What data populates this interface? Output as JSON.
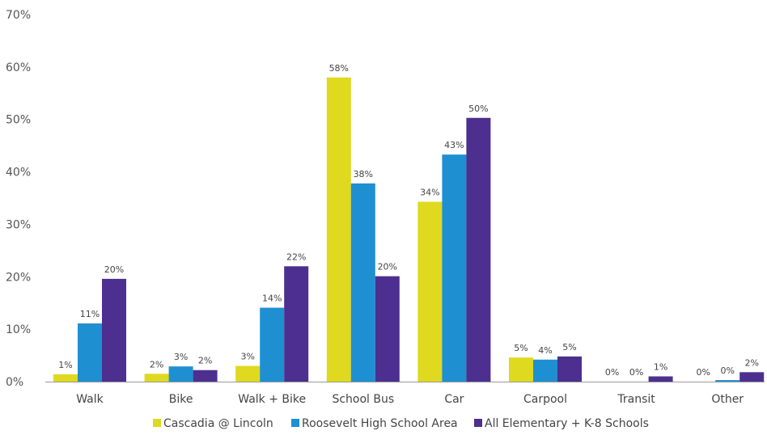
{
  "chart_data": {
    "type": "bar",
    "title": "",
    "xlabel": "",
    "ylabel": "",
    "ylim": [
      0,
      70
    ],
    "y_ticks": [
      "0%",
      "10%",
      "20%",
      "30%",
      "40%",
      "50%",
      "60%",
      "70%"
    ],
    "grid": false,
    "legend_position": "bottom",
    "categories": [
      "Walk",
      "Bike",
      "Walk + Bike",
      "School Bus",
      "Car",
      "Carpool",
      "Transit",
      "Other"
    ],
    "series": [
      {
        "name": "Cascadia @ Lincoln",
        "color": "#dfd91f",
        "values": [
          1.4,
          1.5,
          3.0,
          58.0,
          34.3,
          4.6,
          0,
          0
        ],
        "labels": [
          "1%",
          "2%",
          "3%",
          "58%",
          "34%",
          "5%",
          "0%",
          "0%"
        ]
      },
      {
        "name": "Roosevelt High School Area",
        "color": "#1e90d2",
        "values": [
          11.1,
          2.9,
          14.1,
          37.8,
          43.3,
          4.2,
          0,
          0.3
        ],
        "labels": [
          "11%",
          "3%",
          "14%",
          "38%",
          "43%",
          "4%",
          "0%",
          "0%"
        ]
      },
      {
        "name": "All Elementary + K-8 Schools",
        "color": "#4c2f8f",
        "values": [
          19.6,
          2.2,
          22.0,
          20.1,
          50.3,
          4.8,
          1.0,
          1.8
        ],
        "labels": [
          "20%",
          "2%",
          "22%",
          "20%",
          "50%",
          "5%",
          "1%",
          "2%"
        ]
      }
    ]
  }
}
